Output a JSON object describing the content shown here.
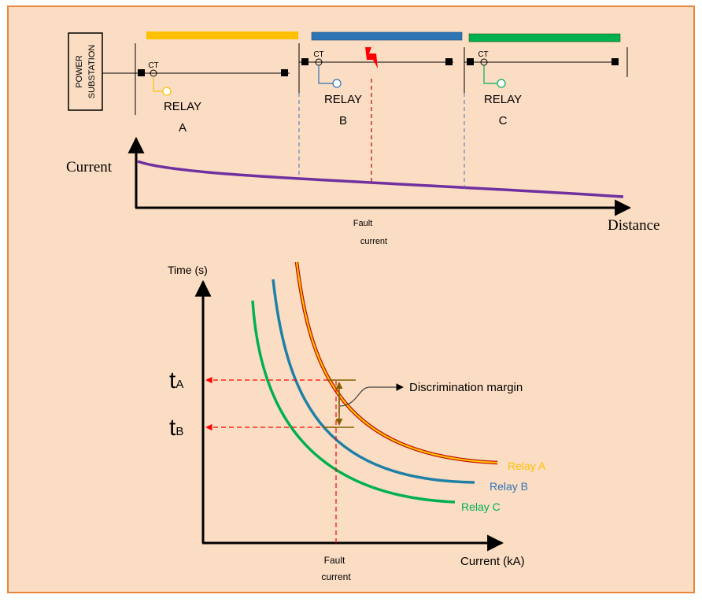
{
  "colors": {
    "background": "#fbddc3",
    "border": "#e8863a",
    "relay_a": "#ffc000",
    "relay_b": "#2e75b6",
    "relay_c": "#00b050",
    "current_curve": "#7030a0",
    "fault": "#ff0000",
    "margin_arrow": "#806000"
  },
  "top_diagram": {
    "substation_label_line1": "POWER",
    "substation_label_line2": "SUBSTATION",
    "ct_label": "CT",
    "relays": [
      {
        "word": "RELAY",
        "letter": "A"
      },
      {
        "word": "RELAY",
        "letter": "B"
      },
      {
        "word": "RELAY",
        "letter": "C"
      }
    ],
    "fault_icon": "lightning-bolt-icon"
  },
  "current_distance_graph": {
    "ylabel": "Current",
    "xlabel": "Distance",
    "fault_label_line1": "Fault",
    "fault_label_line2": "current"
  },
  "chart_data": {
    "type": "line",
    "title": "",
    "xlabel": "Current (kA)",
    "ylabel": "Time (s)",
    "series": [
      {
        "name": "Relay A"
      },
      {
        "name": "Relay B"
      },
      {
        "name": "Relay C"
      }
    ],
    "y_markers": [
      {
        "main": "t",
        "sub": "A"
      },
      {
        "main": "t",
        "sub": "B"
      }
    ],
    "annotation": "Discrimination margin",
    "fault_label_line1": "Fault",
    "fault_label_line2": "current"
  }
}
